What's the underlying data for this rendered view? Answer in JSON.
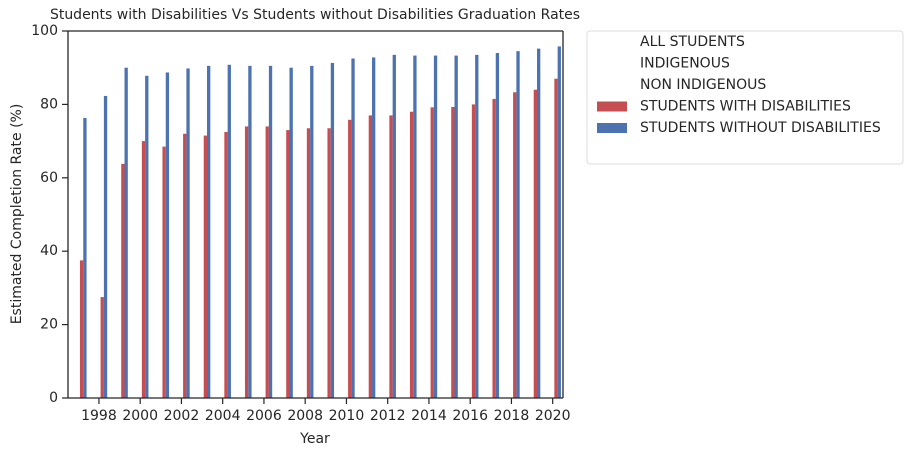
{
  "chart_data": {
    "type": "bar",
    "title": "Students with Disabilities Vs Students without Disabilities Graduation Rates",
    "xlabel": "Year",
    "ylabel": "Estimated Completion Rate (%)",
    "categories": [
      null,
      "1998",
      null,
      "2000",
      null,
      "2002",
      null,
      "2004",
      null,
      "2006",
      null,
      "2008",
      null,
      "2010",
      null,
      "2012",
      null,
      "2014",
      null,
      "2016",
      null,
      "2018",
      null,
      "2020"
    ],
    "series": [
      {
        "name": "ALL STUDENTS",
        "values": [
          null,
          null,
          null,
          null,
          null,
          null,
          null,
          null,
          null,
          null,
          null,
          null,
          null,
          null,
          null,
          null,
          null,
          null,
          null,
          null,
          null,
          null,
          null,
          null
        ]
      },
      {
        "name": "INDIGENOUS",
        "values": [
          null,
          null,
          null,
          null,
          null,
          null,
          null,
          null,
          null,
          null,
          null,
          null,
          null,
          null,
          null,
          null,
          null,
          null,
          null,
          null,
          null,
          null,
          null,
          null
        ]
      },
      {
        "name": "NON INDIGENOUS",
        "values": [
          null,
          null,
          null,
          null,
          null,
          null,
          null,
          null,
          null,
          null,
          null,
          null,
          null,
          null,
          null,
          null,
          null,
          null,
          null,
          null,
          null,
          null,
          null,
          null
        ]
      },
      {
        "name": "STUDENTS WITH DISABILITIES",
        "color": "#c44e52",
        "values": [
          37.5,
          27.5,
          63.8,
          70,
          68.5,
          72,
          71.5,
          72.5,
          74,
          74,
          73,
          73.5,
          73.5,
          75.8,
          77,
          77,
          78,
          79.2,
          79.3,
          80,
          81.5,
          83.3,
          84,
          87
        ]
      },
      {
        "name": "STUDENTS WITHOUT DISABILITIES",
        "color": "#4c72b0",
        "values": [
          76.3,
          82.3,
          90,
          87.8,
          88.7,
          89.8,
          90.5,
          90.8,
          90.5,
          90.5,
          90,
          90.5,
          91.3,
          92.5,
          92.8,
          93.5,
          93.3,
          93.3,
          93.3,
          93.5,
          94,
          94.5,
          95.2,
          95.8
        ]
      }
    ],
    "ylim": [
      0,
      100
    ],
    "yticks": [
      0,
      20,
      40,
      60,
      80,
      100
    ],
    "grid": false,
    "legend": "outside-upper-right"
  }
}
